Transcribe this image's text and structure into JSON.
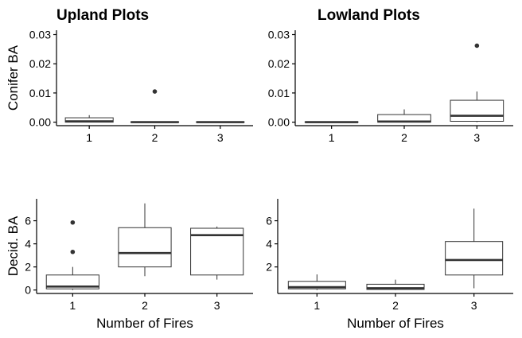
{
  "chart_data": [
    {
      "type": "box",
      "title": "Upland Plots",
      "ylabel": "Conifer BA",
      "xlabel": "",
      "categories": [
        "1",
        "2",
        "3"
      ],
      "ylim": [
        -0.0012,
        0.0315
      ],
      "yticks": [
        "0.00",
        "0.01",
        "0.02",
        "0.03"
      ],
      "boxes": [
        {
          "category": "1",
          "min": 0.0,
          "q1": 0.0,
          "median": 0.0003,
          "q3": 0.0015,
          "max": 0.0024,
          "outliers": []
        },
        {
          "category": "2",
          "min": 0.0,
          "q1": 0.0,
          "median": 0.0,
          "q3": 0.0001,
          "max": 0.0001,
          "outliers": [
            0.0105
          ]
        },
        {
          "category": "3",
          "min": 0.0,
          "q1": 0.0,
          "median": 0.0,
          "q3": 0.0001,
          "max": 0.0001,
          "outliers": []
        }
      ]
    },
    {
      "type": "box",
      "title": "Lowland Plots",
      "ylabel": "",
      "xlabel": "",
      "categories": [
        "1",
        "2",
        "3"
      ],
      "ylim": [
        -0.0012,
        0.0315
      ],
      "yticks": [
        "0.00",
        "0.01",
        "0.02",
        "0.03"
      ],
      "boxes": [
        {
          "category": "1",
          "min": 0.0,
          "q1": 0.0,
          "median": 0.0,
          "q3": 0.0001,
          "max": 0.0001,
          "outliers": []
        },
        {
          "category": "2",
          "min": 0.0,
          "q1": 0.0,
          "median": 0.0002,
          "q3": 0.0026,
          "max": 0.0044,
          "outliers": []
        },
        {
          "category": "3",
          "min": 0.0,
          "q1": 0.0003,
          "median": 0.0022,
          "q3": 0.0075,
          "max": 0.0105,
          "outliers": [
            0.0262
          ]
        }
      ]
    },
    {
      "type": "box",
      "title": "",
      "ylabel": "Decid. BA",
      "xlabel": "Number of Fires",
      "categories": [
        "1",
        "2",
        "3"
      ],
      "ylim": [
        -0.3,
        7.9
      ],
      "yticks": [
        "0",
        "2",
        "4",
        "6"
      ],
      "boxes": [
        {
          "category": "1",
          "min": 0.0,
          "q1": 0.1,
          "median": 0.3,
          "q3": 1.3,
          "max": 2.0,
          "outliers": [
            3.3,
            5.85
          ]
        },
        {
          "category": "2",
          "min": 1.2,
          "q1": 2.0,
          "median": 3.2,
          "q3": 5.4,
          "max": 7.5,
          "outliers": []
        },
        {
          "category": "3",
          "min": 0.9,
          "q1": 1.3,
          "median": 4.75,
          "q3": 5.35,
          "max": 5.5,
          "outliers": []
        }
      ]
    },
    {
      "type": "box",
      "title": "",
      "ylabel": "",
      "xlabel": "Number of Fires",
      "categories": [
        "1",
        "2",
        "3"
      ],
      "ylim": [
        -0.3,
        7.9
      ],
      "yticks": [
        "2",
        "4",
        "6"
      ],
      "boxes": [
        {
          "category": "1",
          "min": 0.0,
          "q1": 0.1,
          "median": 0.25,
          "q3": 0.75,
          "max": 1.35,
          "outliers": []
        },
        {
          "category": "2",
          "min": 0.0,
          "q1": 0.05,
          "median": 0.15,
          "q3": 0.5,
          "max": 0.9,
          "outliers": []
        },
        {
          "category": "3",
          "min": 0.15,
          "q1": 1.3,
          "median": 2.6,
          "q3": 4.2,
          "max": 7.05,
          "outliers": []
        }
      ]
    }
  ]
}
